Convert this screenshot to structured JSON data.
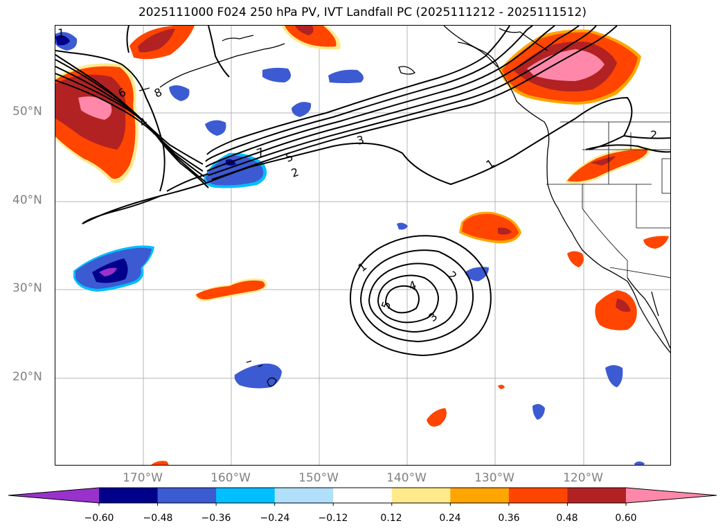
{
  "title": "2025111000 F024 250 hPa PV, IVT Landfall PC (2025111212 - 2025111512)",
  "lat_labels": [
    "50°N",
    "40°N",
    "30°N",
    "20°N"
  ],
  "lon_labels": [
    "170°W",
    "160°W",
    "150°W",
    "140°W",
    "130°W",
    "120°W"
  ],
  "colorbar": {
    "colors": [
      "#9932cc",
      "#00008b",
      "#3c5ad2",
      "#00bfff",
      "#b0e0fa",
      "#ffffff",
      "#ffea8c",
      "#ffa500",
      "#ff4500",
      "#b22222",
      "#ff88aa"
    ],
    "tick_labels": [
      "−0.60",
      "−0.48",
      "−0.36",
      "−0.24",
      "−0.12",
      "0.12",
      "0.24",
      "0.36",
      "0.48",
      "0.60"
    ]
  },
  "contour_labels": {
    "north_jet": [
      "1",
      "6",
      "8",
      "4",
      "7",
      "5",
      "2",
      "3",
      "1",
      "2"
    ],
    "subtropical_low": [
      "1",
      "2",
      "4",
      "5",
      "3"
    ]
  }
}
